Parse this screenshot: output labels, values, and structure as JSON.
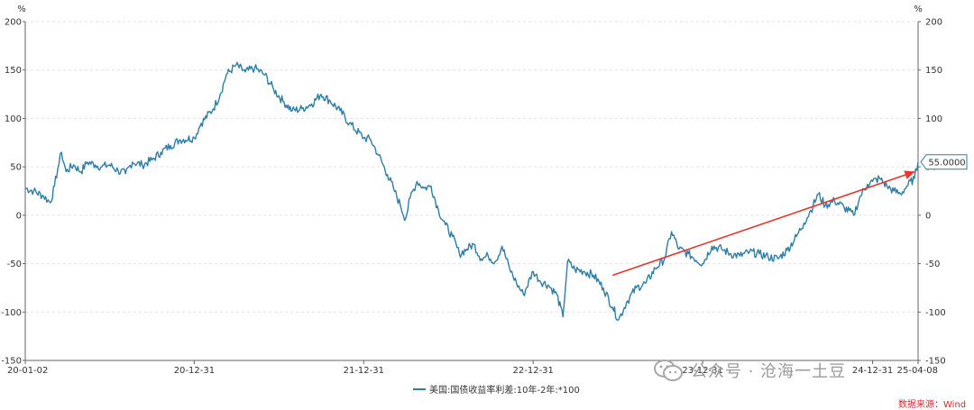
{
  "chart_data": {
    "type": "line",
    "left_axis_unit": "%",
    "right_axis_unit": "%",
    "ylim": [
      -150,
      200
    ],
    "yticks": [
      -150,
      -100,
      -50,
      0,
      50,
      100,
      150,
      200
    ],
    "xticks": [
      "20-01-02",
      "20-12-31",
      "21-12-31",
      "22-12-31",
      "23-12-31",
      "24-12-31",
      "25-04-08"
    ],
    "grid": true,
    "legend_position": "bottom",
    "last_value_label": "55.0000",
    "series": [
      {
        "name": "美国:国债收益率利差:10年-2年:*100",
        "color": "#2e7ea6",
        "points": [
          [
            "20-01-02",
            28
          ],
          [
            "20-01-20",
            25
          ],
          [
            "20-02-10",
            20
          ],
          [
            "20-02-25",
            13
          ],
          [
            "20-03-05",
            30
          ],
          [
            "20-03-12",
            48
          ],
          [
            "20-03-20",
            65
          ],
          [
            "20-03-30",
            45
          ],
          [
            "20-04-15",
            52
          ],
          [
            "20-05-01",
            45
          ],
          [
            "20-05-15",
            55
          ],
          [
            "20-06-01",
            52
          ],
          [
            "20-06-15",
            50
          ],
          [
            "20-07-01",
            52
          ],
          [
            "20-07-20",
            46
          ],
          [
            "20-08-05",
            43
          ],
          [
            "20-08-20",
            55
          ],
          [
            "20-09-10",
            52
          ],
          [
            "20-10-01",
            57
          ],
          [
            "20-10-20",
            65
          ],
          [
            "20-11-10",
            72
          ],
          [
            "20-12-01",
            78
          ],
          [
            "20-12-31",
            80
          ],
          [
            "21-01-15",
            95
          ],
          [
            "21-02-10",
            110
          ],
          [
            "21-02-25",
            125
          ],
          [
            "21-03-10",
            145
          ],
          [
            "21-03-31",
            155
          ],
          [
            "21-04-20",
            148
          ],
          [
            "21-05-10",
            152
          ],
          [
            "21-06-01",
            145
          ],
          [
            "21-06-20",
            130
          ],
          [
            "21-07-10",
            118
          ],
          [
            "21-07-30",
            108
          ],
          [
            "21-08-20",
            110
          ],
          [
            "21-09-10",
            115
          ],
          [
            "21-09-30",
            125
          ],
          [
            "21-10-20",
            118
          ],
          [
            "21-11-10",
            108
          ],
          [
            "21-11-30",
            95
          ],
          [
            "21-12-31",
            80
          ],
          [
            "22-01-15",
            78
          ],
          [
            "22-02-01",
            62
          ],
          [
            "22-02-20",
            42
          ],
          [
            "22-03-05",
            28
          ],
          [
            "22-03-20",
            10
          ],
          [
            "22-03-31",
            -4
          ],
          [
            "22-04-10",
            18
          ],
          [
            "22-04-25",
            35
          ],
          [
            "22-05-10",
            28
          ],
          [
            "22-05-25",
            30
          ],
          [
            "22-06-10",
            5
          ],
          [
            "22-06-25",
            -10
          ],
          [
            "22-07-10",
            -22
          ],
          [
            "22-07-25",
            -40
          ],
          [
            "22-08-10",
            -35
          ],
          [
            "22-08-25",
            -30
          ],
          [
            "22-09-10",
            -45
          ],
          [
            "22-09-25",
            -42
          ],
          [
            "22-10-10",
            -48
          ],
          [
            "22-10-25",
            -32
          ],
          [
            "22-11-10",
            -55
          ],
          [
            "22-11-25",
            -70
          ],
          [
            "22-12-10",
            -82
          ],
          [
            "22-12-31",
            -58
          ],
          [
            "23-01-15",
            -68
          ],
          [
            "23-02-01",
            -72
          ],
          [
            "23-02-20",
            -82
          ],
          [
            "23-03-05",
            -105
          ],
          [
            "23-03-15",
            -48
          ],
          [
            "23-03-31",
            -56
          ],
          [
            "23-04-20",
            -58
          ],
          [
            "23-05-10",
            -62
          ],
          [
            "23-05-31",
            -75
          ],
          [
            "23-06-20",
            -95
          ],
          [
            "23-07-03",
            -108
          ],
          [
            "23-07-20",
            -90
          ],
          [
            "23-08-10",
            -75
          ],
          [
            "23-08-31",
            -70
          ],
          [
            "23-09-20",
            -55
          ],
          [
            "23-10-10",
            -45
          ],
          [
            "23-10-25",
            -17
          ],
          [
            "23-11-10",
            -35
          ],
          [
            "23-11-30",
            -40
          ],
          [
            "23-12-31",
            -50
          ],
          [
            "24-01-20",
            -32
          ],
          [
            "24-02-10",
            -35
          ],
          [
            "24-03-01",
            -40
          ],
          [
            "24-03-20",
            -42
          ],
          [
            "24-04-10",
            -38
          ],
          [
            "24-05-01",
            -40
          ],
          [
            "24-05-20",
            -43
          ],
          [
            "24-06-10",
            -45
          ],
          [
            "24-06-30",
            -36
          ],
          [
            "24-07-20",
            -22
          ],
          [
            "24-08-05",
            -8
          ],
          [
            "24-08-20",
            5
          ],
          [
            "24-09-05",
            22
          ],
          [
            "24-09-20",
            10
          ],
          [
            "24-10-10",
            15
          ],
          [
            "24-10-31",
            8
          ],
          [
            "24-11-20",
            0
          ],
          [
            "24-12-05",
            20
          ],
          [
            "24-12-20",
            32
          ],
          [
            "24-12-31",
            35
          ],
          [
            "25-01-15",
            38
          ],
          [
            "25-01-31",
            30
          ],
          [
            "25-02-15",
            25
          ],
          [
            "25-03-01",
            22
          ],
          [
            "25-03-15",
            30
          ],
          [
            "25-03-31",
            38
          ],
          [
            "25-04-08",
            55
          ]
        ]
      }
    ],
    "annotations": [
      {
        "type": "arrow",
        "color": "#e8362b",
        "from": [
          "23-06-20",
          -62
        ],
        "to": [
          "25-04-01",
          45
        ]
      }
    ]
  },
  "legend": {
    "label": "美国:国债收益率利差:10年-2年:*100",
    "color": "#2e7ea6"
  },
  "watermark": {
    "text": "公众号 · 沧海一土豆"
  },
  "source": {
    "text": "数据来源：Wind",
    "color": "#d9262e"
  }
}
